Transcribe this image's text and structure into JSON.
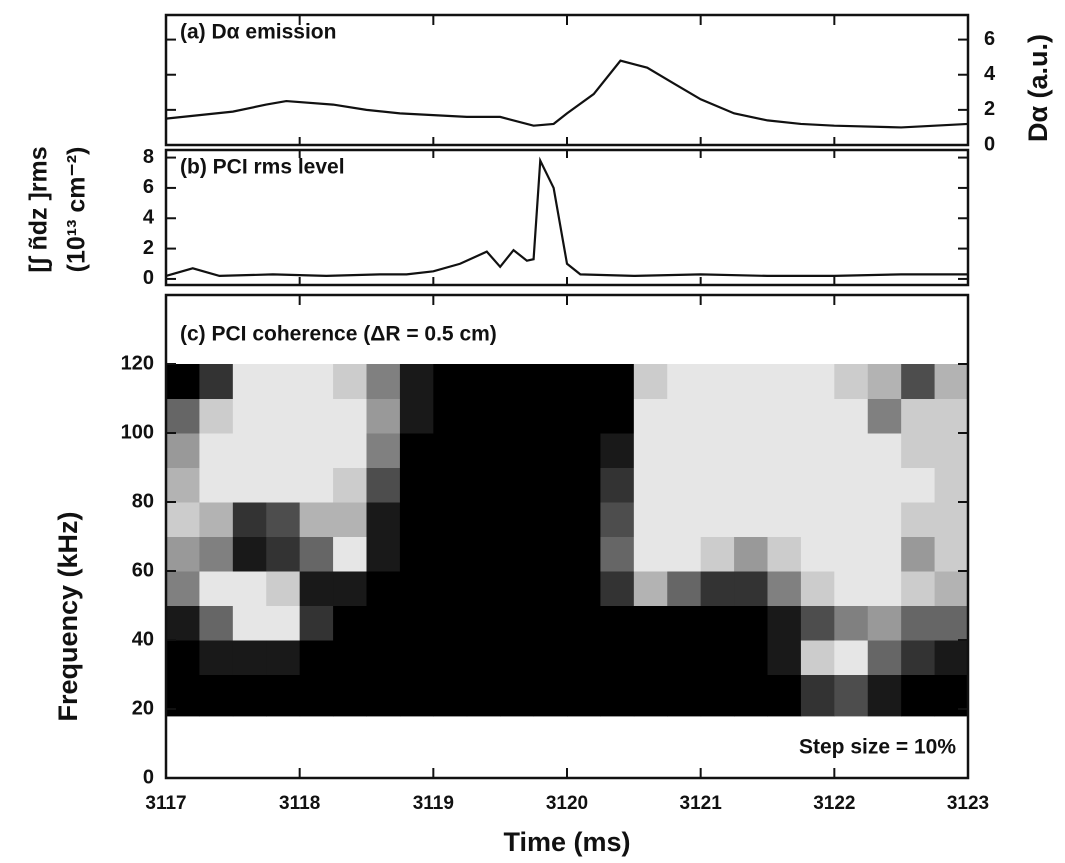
{
  "chart_data": [
    {
      "type": "line",
      "annotation": "(a) Dα emission",
      "ylabel": "Dα (a.u.)",
      "y_axis_side": "right",
      "x": [
        3117,
        3117.25,
        3117.5,
        3117.75,
        3117.9,
        3118.25,
        3118.5,
        3118.75,
        3119,
        3119.25,
        3119.5,
        3119.75,
        3119.9,
        3120,
        3120.2,
        3120.4,
        3120.6,
        3120.8,
        3121,
        3121.25,
        3121.5,
        3121.75,
        3122,
        3122.5,
        3123
      ],
      "values": [
        1.5,
        1.7,
        1.9,
        2.3,
        2.5,
        2.3,
        2.0,
        1.8,
        1.7,
        1.6,
        1.6,
        1.1,
        1.2,
        1.8,
        2.9,
        4.8,
        4.4,
        3.5,
        2.6,
        1.8,
        1.4,
        1.2,
        1.1,
        1.0,
        1.2
      ],
      "color": "#111111",
      "xlim": [
        3117,
        3123
      ],
      "ylim": [
        0,
        7.4
      ],
      "yticks": [
        0,
        2,
        4,
        6
      ]
    },
    {
      "type": "line",
      "annotation": "(b) PCI rms level",
      "ylabel": [
        "[∫ ñdz ]rms",
        "(10¹³ cm⁻²)"
      ],
      "y_axis_side": "left",
      "x": [
        3117,
        3117.2,
        3117.4,
        3117.8,
        3118.2,
        3118.6,
        3118.8,
        3119,
        3119.2,
        3119.4,
        3119.5,
        3119.6,
        3119.7,
        3119.75,
        3119.8,
        3119.9,
        3120,
        3120.1,
        3120.5,
        3121,
        3121.5,
        3122,
        3122.5,
        3123
      ],
      "values": [
        0.2,
        0.7,
        0.2,
        0.3,
        0.2,
        0.3,
        0.3,
        0.5,
        1.0,
        1.8,
        0.8,
        1.9,
        1.2,
        1.3,
        7.8,
        6.0,
        1.0,
        0.3,
        0.2,
        0.3,
        0.2,
        0.2,
        0.3,
        0.3
      ],
      "color": "#111111",
      "xlim": [
        3117,
        3123
      ],
      "ylim": [
        -0.4,
        8.5
      ],
      "yticks": [
        0,
        2,
        4,
        6,
        8
      ]
    },
    {
      "type": "heatmap",
      "annotation": "(c) PCI coherence (ΔR = 0.5 cm)",
      "note": "Step size = 10%",
      "ylabel": "Frequency (kHz)",
      "xlabel": "Time (ms)",
      "y_axis_side": "left",
      "x_edges": [
        3117,
        3117.25,
        3117.5,
        3117.75,
        3118,
        3118.25,
        3118.5,
        3118.75,
        3119,
        3119.25,
        3119.5,
        3119.75,
        3120,
        3120.25,
        3120.5,
        3120.75,
        3121,
        3121.25,
        3121.5,
        3121.75,
        3122,
        3122.25,
        3122.5,
        3122.75,
        3123
      ],
      "y_edges": [
        18,
        30,
        40,
        50,
        60,
        70,
        80,
        90,
        100,
        110,
        120
      ],
      "z": [
        [
          1,
          1,
          1,
          1,
          1,
          1,
          1,
          1,
          1,
          1,
          1,
          1,
          1,
          1,
          1,
          1,
          1,
          1,
          1,
          0.8,
          0.7,
          0.9,
          1,
          1
        ],
        [
          1,
          0.9,
          0.9,
          0.9,
          1,
          1,
          1,
          1,
          1,
          1,
          1,
          1,
          1,
          1,
          1,
          1,
          1,
          1,
          0.9,
          0.2,
          0.1,
          0.6,
          0.8,
          0.9
        ],
        [
          0.9,
          0.6,
          0.1,
          0.1,
          0.8,
          1,
          1,
          1,
          1,
          1,
          1,
          1,
          1,
          1,
          1,
          1,
          1,
          1,
          0.9,
          0.7,
          0.5,
          0.4,
          0.6,
          0.6
        ],
        [
          0.5,
          0.1,
          0.1,
          0.2,
          0.9,
          0.9,
          1,
          1,
          1,
          1,
          1,
          1,
          1,
          0.8,
          0.3,
          0.6,
          0.8,
          0.8,
          0.5,
          0.2,
          0.1,
          0.1,
          0.2,
          0.3
        ],
        [
          0.4,
          0.5,
          0.9,
          0.8,
          0.6,
          0.1,
          0.9,
          1,
          1,
          1,
          1,
          1,
          1,
          0.6,
          0.1,
          0.1,
          0.2,
          0.4,
          0.2,
          0.1,
          0.1,
          0.1,
          0.4,
          0.2
        ],
        [
          0.2,
          0.3,
          0.8,
          0.7,
          0.3,
          0.3,
          0.9,
          1,
          1,
          1,
          1,
          1,
          1,
          0.7,
          0.1,
          0.1,
          0.1,
          0.1,
          0.1,
          0.1,
          0.1,
          0.1,
          0.2,
          0.2
        ],
        [
          0.3,
          0.1,
          0.1,
          0.1,
          0.1,
          0.2,
          0.7,
          1,
          1,
          1,
          1,
          1,
          1,
          0.8,
          0.1,
          0.1,
          0.1,
          0.1,
          0.1,
          0.1,
          0.1,
          0.1,
          0.1,
          0.2
        ],
        [
          0.4,
          0.1,
          0.1,
          0.1,
          0.1,
          0.1,
          0.5,
          1,
          1,
          1,
          1,
          1,
          1,
          0.9,
          0.1,
          0.1,
          0.1,
          0.1,
          0.1,
          0.1,
          0.1,
          0.1,
          0.2,
          0.2
        ],
        [
          0.6,
          0.2,
          0.1,
          0.1,
          0.1,
          0.1,
          0.4,
          0.9,
          1,
          1,
          1,
          1,
          1,
          1,
          0.1,
          0.1,
          0.1,
          0.1,
          0.1,
          0.1,
          0.1,
          0.5,
          0.2,
          0.2
        ],
        [
          1,
          0.8,
          0.1,
          0.1,
          0.1,
          0.2,
          0.5,
          0.9,
          1,
          1,
          1,
          1,
          1,
          1,
          0.2,
          0.1,
          0.1,
          0.1,
          0.1,
          0.1,
          0.2,
          0.3,
          0.7,
          0.3
        ]
      ],
      "xlim": [
        3117,
        3123
      ],
      "ylim": [
        0,
        140
      ],
      "yticks": [
        0,
        20,
        40,
        60,
        80,
        100,
        120
      ],
      "xticks": [
        3117,
        3118,
        3119,
        3120,
        3121,
        3122,
        3123
      ]
    }
  ]
}
